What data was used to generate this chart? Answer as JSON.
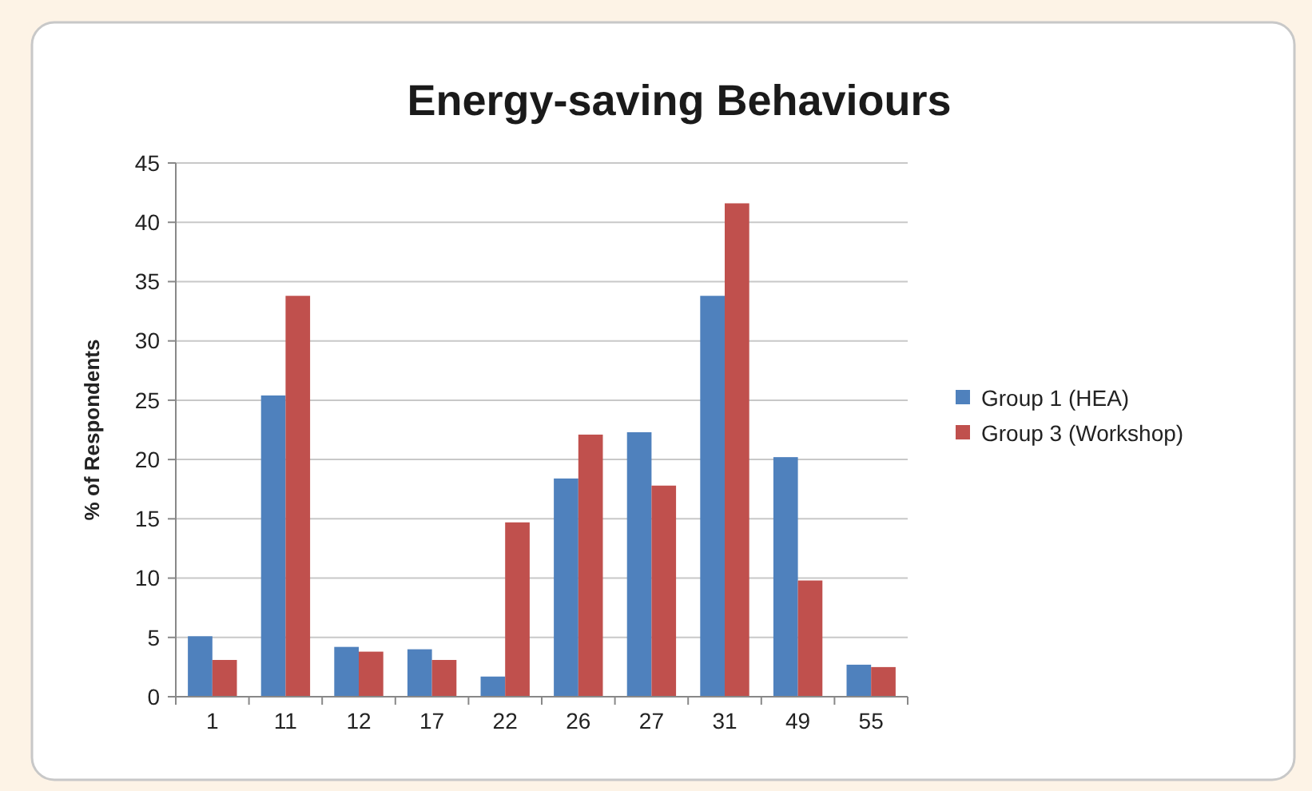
{
  "chart_data": {
    "type": "bar",
    "title": "Energy-saving Behaviours",
    "ylabel": "% of Respondents",
    "categories": [
      "1",
      "11",
      "12",
      "17",
      "22",
      "26",
      "27",
      "31",
      "49",
      "55"
    ],
    "series": [
      {
        "name": "Group 1 (HEA)",
        "color": "#4f81bd",
        "values": [
          5.1,
          25.4,
          4.2,
          4.0,
          1.7,
          18.4,
          22.3,
          33.8,
          20.2,
          2.7
        ]
      },
      {
        "name": "Group 3 (Workshop)",
        "color": "#c0504d",
        "values": [
          3.1,
          33.8,
          3.8,
          3.1,
          14.7,
          22.1,
          17.8,
          41.6,
          9.8,
          2.5
        ]
      }
    ],
    "ylim": [
      0,
      45
    ],
    "yticks": [
      0,
      5,
      10,
      15,
      20,
      25,
      30,
      35,
      40,
      45
    ],
    "grid": "y",
    "legend": "right"
  }
}
